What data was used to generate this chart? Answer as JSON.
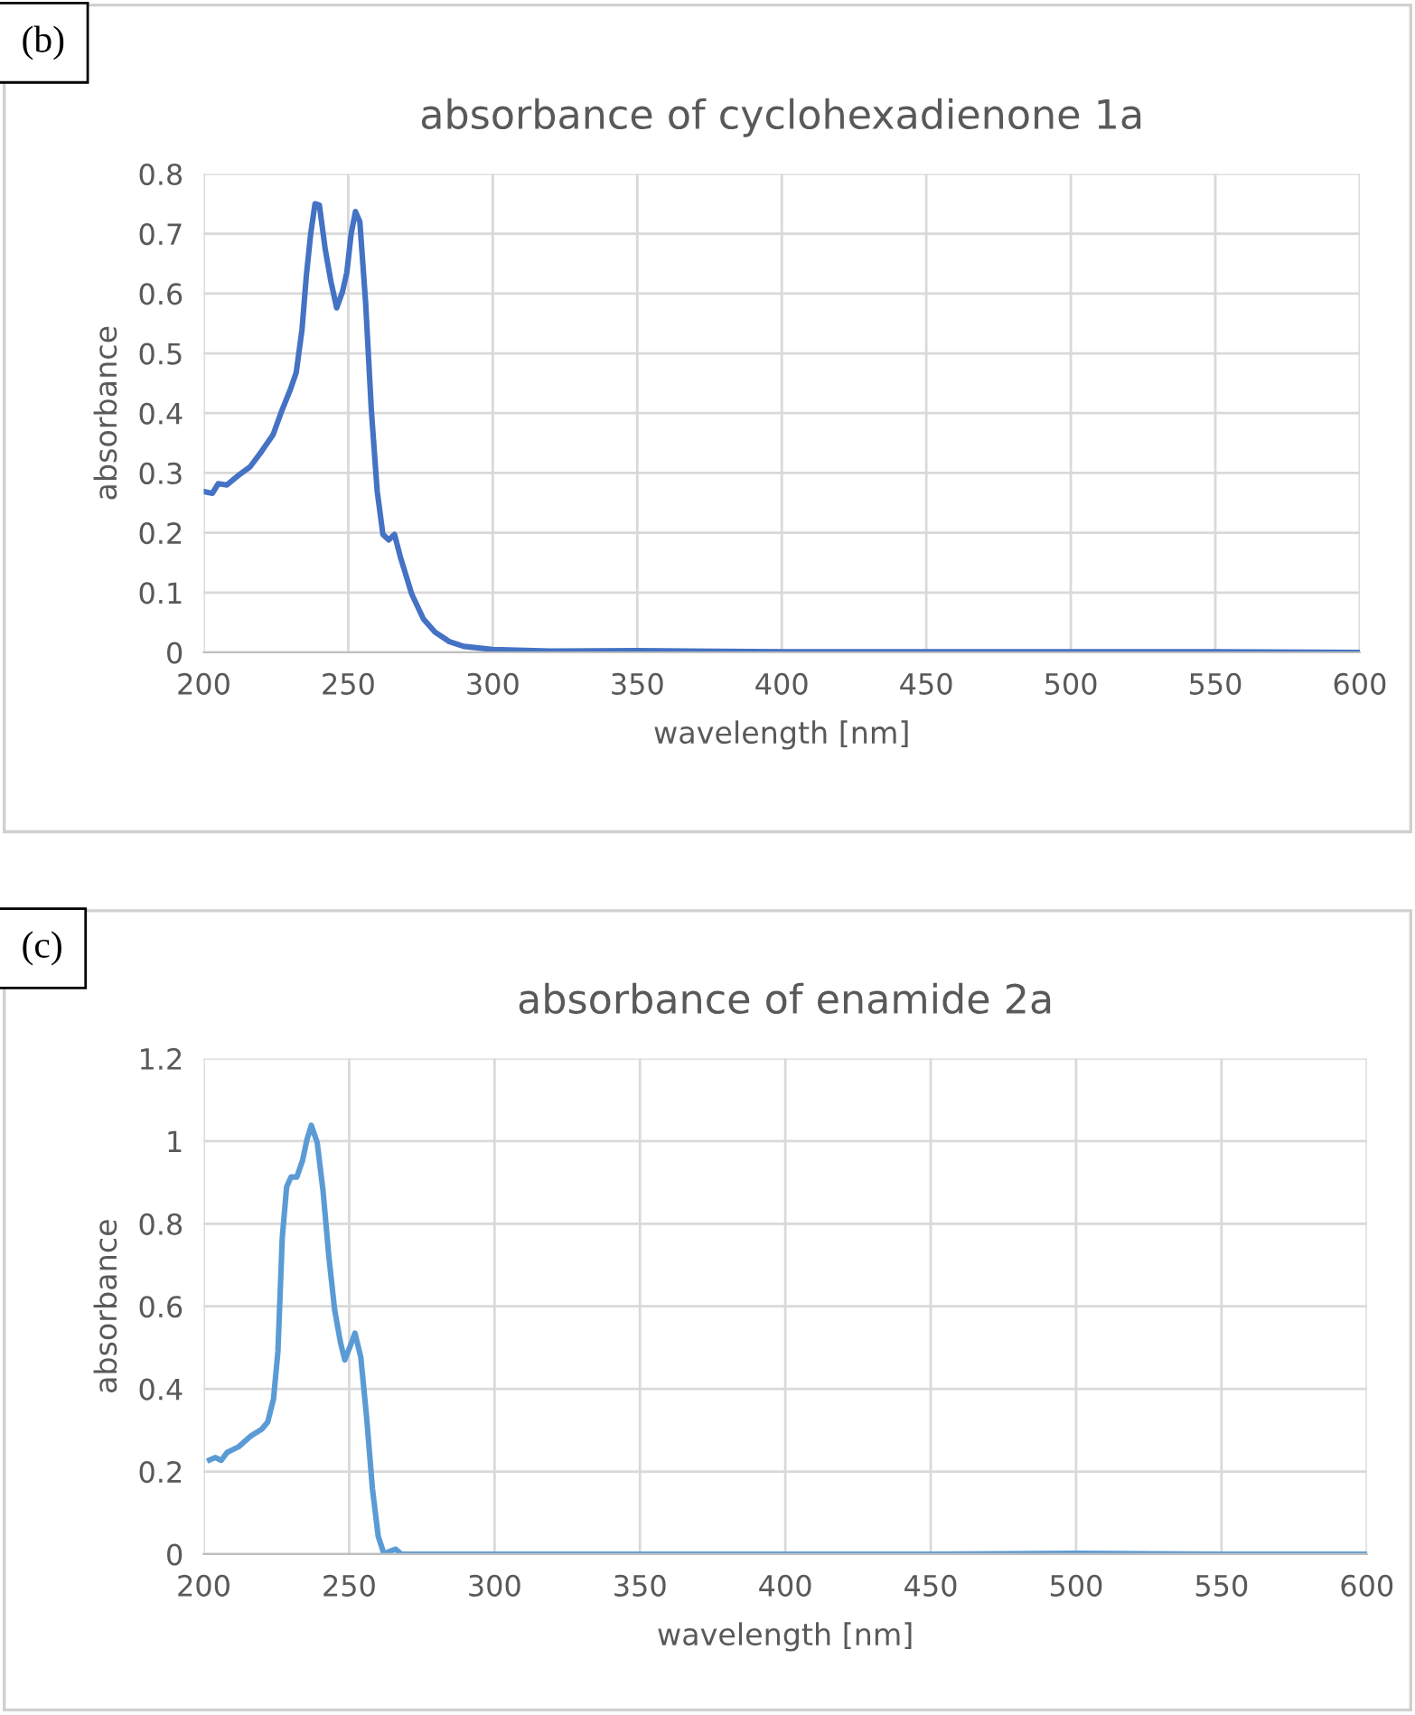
{
  "chart_data": [
    {
      "type": "line",
      "title": "absorbance of cyclohexadienone 1a",
      "xlabel": "wavelength [nm]",
      "ylabel": "absorbance",
      "annotations": [
        "(b)"
      ],
      "series": [
        {
          "color": "#4472c4",
          "x": [
            200,
            203,
            205,
            208,
            212,
            216,
            220,
            224,
            227,
            230,
            232,
            234,
            235.5,
            237,
            238.5,
            240,
            242,
            244,
            246,
            248,
            249.5,
            251,
            252.5,
            254,
            256,
            258,
            260,
            262,
            264,
            266,
            268,
            272,
            276,
            280,
            285,
            290,
            300,
            320,
            350,
            400,
            450,
            500,
            550,
            600
          ],
          "values": [
            0.269,
            0.266,
            0.282,
            0.28,
            0.296,
            0.31,
            0.336,
            0.364,
            0.404,
            0.44,
            0.468,
            0.54,
            0.63,
            0.7,
            0.75,
            0.748,
            0.675,
            0.62,
            0.576,
            0.603,
            0.635,
            0.7,
            0.737,
            0.72,
            0.585,
            0.404,
            0.27,
            0.197,
            0.188,
            0.197,
            0.16,
            0.097,
            0.056,
            0.034,
            0.018,
            0.01,
            0.005,
            0.002,
            0.003,
            0.001,
            0.001,
            0.001,
            0.001,
            0.0
          ]
        }
      ],
      "xlim": [
        200,
        600
      ],
      "xticks": [
        200,
        250,
        300,
        350,
        400,
        450,
        500,
        550,
        600
      ],
      "ylim": [
        0,
        0.8
      ],
      "yticks": [
        0,
        0.1,
        0.2,
        0.3,
        0.4,
        0.5,
        0.6,
        0.7,
        0.8
      ],
      "grid": true,
      "legend": false,
      "marker": "none",
      "line_style": "solid"
    },
    {
      "type": "line",
      "title": "absorbance of enamide 2a",
      "xlabel": "wavelength [nm]",
      "ylabel": "absorbance",
      "annotations": [
        "(c)"
      ],
      "series": [
        {
          "color": "#5b9bd5",
          "x": [
            202,
            204,
            206,
            208,
            212,
            216,
            220,
            222,
            224,
            225.5,
            227,
            228.5,
            230,
            232,
            234,
            235.5,
            237,
            239,
            241,
            243,
            245,
            247,
            248.5,
            250.5,
            252,
            254,
            256,
            258,
            260,
            262,
            264,
            266,
            268,
            275,
            300,
            350,
            400,
            450,
            500,
            550,
            600
          ],
          "values": [
            0.228,
            0.234,
            0.227,
            0.246,
            0.26,
            0.285,
            0.303,
            0.32,
            0.376,
            0.49,
            0.766,
            0.889,
            0.913,
            0.913,
            0.954,
            1.004,
            1.038,
            0.997,
            0.881,
            0.722,
            0.592,
            0.513,
            0.47,
            0.506,
            0.535,
            0.477,
            0.332,
            0.159,
            0.043,
            0.0,
            0.007,
            0.012,
            0.0,
            0.0,
            0.0,
            0.0,
            0.0,
            0.0,
            0.002,
            0.0,
            0.0
          ]
        }
      ],
      "xlim": [
        200,
        600
      ],
      "xticks": [
        200,
        250,
        300,
        350,
        400,
        450,
        500,
        550,
        600
      ],
      "ylim": [
        0,
        1.2
      ],
      "yticks": [
        0,
        0.2,
        0.4,
        0.6,
        0.8,
        1,
        1.2
      ],
      "grid": true,
      "legend": false,
      "marker": "none",
      "line_style": "solid"
    }
  ]
}
